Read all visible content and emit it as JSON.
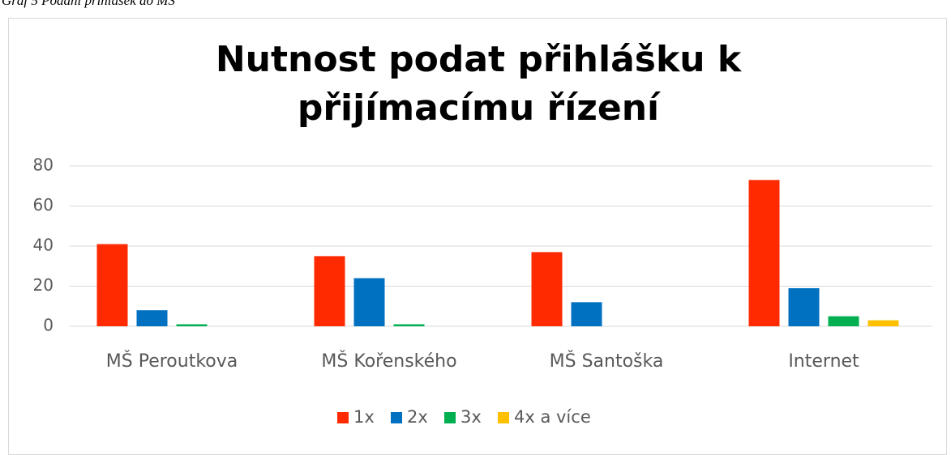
{
  "caption": "Graf 5 Podání přihlášek do MŠ",
  "chart_data": {
    "type": "bar",
    "title": "Nutnost podat přihlášku k přijímacímu řízení",
    "categories": [
      "MŠ Peroutkova",
      "MŠ Kořenského",
      "MŠ Santoška",
      "Internet"
    ],
    "series": [
      {
        "name": "1x",
        "color": "#ff2a00",
        "values": [
          41,
          35,
          37,
          73
        ]
      },
      {
        "name": "2x",
        "color": "#0070c0",
        "values": [
          8,
          24,
          12,
          19
        ]
      },
      {
        "name": "3x",
        "color": "#00b050",
        "values": [
          1,
          1,
          0,
          5
        ]
      },
      {
        "name": "4x a více",
        "color": "#ffc000",
        "values": [
          0,
          0,
          0,
          3
        ]
      }
    ],
    "ylim": [
      0,
      80
    ],
    "yticks": [
      0,
      20,
      40,
      60,
      80
    ],
    "grid": true,
    "legend": "bottom"
  }
}
